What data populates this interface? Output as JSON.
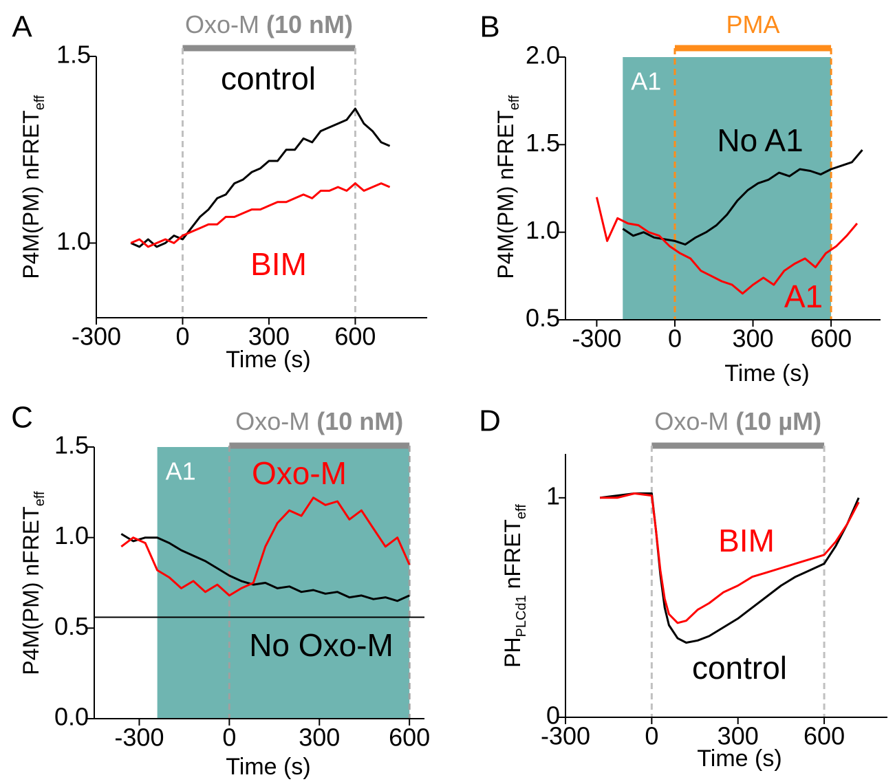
{
  "chart_data": [
    {
      "type": "line",
      "panel": "A",
      "ylabel": [
        {
          "text": "P4M(PM) nFRET"
        },
        {
          "text": "eff",
          "sub": true
        }
      ],
      "xlabel": "Time (s)",
      "xlim": [
        -300,
        850
      ],
      "xticks": [
        -300,
        0,
        300,
        600
      ],
      "ylim": [
        0.8,
        1.5
      ],
      "yticks": [
        {
          "value": 1,
          "label": "1.0"
        },
        1.5
      ],
      "treatment": {
        "label": "Oxo-M",
        "dose": "(10 nM)",
        "from": 0,
        "to": 600,
        "color": "#8c8c8c",
        "line_color": "#c0c0c0"
      },
      "x": [
        -180,
        -150,
        -120,
        -90,
        -60,
        -30,
        0,
        30,
        60,
        90,
        120,
        150,
        180,
        210,
        240,
        270,
        300,
        330,
        360,
        390,
        420,
        450,
        480,
        510,
        540,
        570,
        600,
        630,
        660,
        690,
        720
      ],
      "series": [
        {
          "name": "control",
          "color": "#000000",
          "values": [
            1.0,
            0.99,
            1.01,
            0.99,
            1.0,
            1.02,
            1.01,
            1.04,
            1.07,
            1.09,
            1.12,
            1.13,
            1.16,
            1.17,
            1.19,
            1.2,
            1.22,
            1.22,
            1.25,
            1.25,
            1.28,
            1.27,
            1.3,
            1.31,
            1.32,
            1.33,
            1.36,
            1.32,
            1.3,
            1.27,
            1.26
          ]
        },
        {
          "name": "BIM",
          "color": "#ff0000",
          "values": [
            1.0,
            1.01,
            0.99,
            1.0,
            1.01,
            1.0,
            1.02,
            1.03,
            1.04,
            1.05,
            1.05,
            1.07,
            1.07,
            1.08,
            1.09,
            1.09,
            1.1,
            1.11,
            1.11,
            1.12,
            1.13,
            1.12,
            1.14,
            1.14,
            1.15,
            1.14,
            1.16,
            1.14,
            1.15,
            1.16,
            1.15
          ]
        }
      ]
    },
    {
      "type": "line",
      "panel": "B",
      "ylabel": [
        {
          "text": "P4M(PM) nFRET"
        },
        {
          "text": "eff",
          "sub": true
        }
      ],
      "xlabel": "Time (s)",
      "xlim": [
        -420,
        790
      ],
      "xticks": [
        -300,
        0,
        300,
        600
      ],
      "ylim": [
        0.5,
        2.0
      ],
      "yticks": [
        0.5,
        {
          "value": 1,
          "label": "1.0"
        },
        1.5,
        {
          "value": 2,
          "label": "2.0"
        }
      ],
      "shade": {
        "label": "A1",
        "from": -200,
        "to": 600,
        "color": "#6fb5b1"
      },
      "treatment": {
        "label": "PMA",
        "from": 0,
        "to": 600,
        "color": "#ff8c1a",
        "line_color": "#ff8c1a"
      },
      "series": [
        {
          "name": "No A1",
          "color": "#000000",
          "x": [
            -200,
            -160,
            -120,
            -80,
            -40,
            0,
            40,
            80,
            120,
            160,
            200,
            240,
            280,
            320,
            360,
            400,
            440,
            480,
            520,
            560,
            600,
            640,
            680,
            720
          ],
          "values": [
            1.02,
            0.98,
            1.0,
            0.97,
            0.96,
            0.95,
            0.93,
            0.97,
            1.0,
            1.04,
            1.1,
            1.18,
            1.24,
            1.28,
            1.3,
            1.34,
            1.32,
            1.36,
            1.35,
            1.33,
            1.36,
            1.38,
            1.4,
            1.47
          ]
        },
        {
          "name": "A1",
          "color": "#ff0000",
          "x": [
            -300,
            -260,
            -220,
            -180,
            -140,
            -100,
            -60,
            -20,
            20,
            60,
            100,
            140,
            180,
            220,
            260,
            300,
            340,
            380,
            420,
            460,
            500,
            540,
            580,
            620,
            660,
            700
          ],
          "values": [
            1.2,
            0.95,
            1.08,
            1.05,
            1.04,
            1.0,
            0.98,
            0.92,
            0.88,
            0.85,
            0.78,
            0.75,
            0.72,
            0.7,
            0.65,
            0.7,
            0.74,
            0.7,
            0.78,
            0.82,
            0.85,
            0.8,
            0.88,
            0.92,
            0.98,
            1.05
          ]
        }
      ]
    },
    {
      "type": "line",
      "panel": "C",
      "ylabel": [
        {
          "text": "P4M(PM) nFRET"
        },
        {
          "text": "eff",
          "sub": true
        }
      ],
      "xlabel": "Time (s)",
      "xlim": [
        -450,
        650
      ],
      "xticks": [
        -300,
        0,
        300,
        600
      ],
      "ylim": [
        0,
        1.5
      ],
      "yticks": [
        {
          "value": 0,
          "label": "0.0"
        },
        0.5,
        {
          "value": 1,
          "label": "1.0"
        },
        1.5
      ],
      "hline": 0.56,
      "shade": {
        "label": "A1",
        "from": -240,
        "to": 600,
        "color": "#6fb5b1"
      },
      "treatment": {
        "label": "Oxo-M",
        "dose": "(10 nM)",
        "from": 0,
        "to": 600,
        "color": "#8c8c8c",
        "line_color": "#a0a0a0"
      },
      "x": [
        -360,
        -320,
        -280,
        -240,
        -200,
        -160,
        -120,
        -80,
        -40,
        0,
        40,
        80,
        120,
        160,
        200,
        240,
        280,
        320,
        360,
        400,
        440,
        480,
        520,
        560,
        600
      ],
      "series": [
        {
          "name": "No Oxo-M",
          "color": "#000000",
          "values": [
            1.02,
            0.98,
            1.0,
            1.0,
            0.97,
            0.93,
            0.9,
            0.87,
            0.83,
            0.79,
            0.76,
            0.74,
            0.75,
            0.72,
            0.73,
            0.7,
            0.71,
            0.69,
            0.7,
            0.67,
            0.68,
            0.66,
            0.67,
            0.65,
            0.68
          ]
        },
        {
          "name": "Oxo-M",
          "color": "#ff0000",
          "values": [
            0.95,
            1.0,
            0.97,
            0.82,
            0.78,
            0.72,
            0.76,
            0.7,
            0.74,
            0.68,
            0.72,
            0.75,
            0.95,
            1.08,
            1.15,
            1.12,
            1.22,
            1.18,
            1.2,
            1.1,
            1.15,
            1.05,
            0.95,
            1.0,
            0.85
          ]
        }
      ]
    },
    {
      "type": "line",
      "panel": "D",
      "ylabel": [
        {
          "text": "PH"
        },
        {
          "text": "PLCd1",
          "sub": true
        },
        {
          "text": " nFRET"
        },
        {
          "text": "eff",
          "sub": true
        }
      ],
      "xlabel": "Time (s)",
      "xlim": [
        -300,
        820
      ],
      "xticks": [
        -300,
        0,
        300,
        600
      ],
      "ylim": [
        0,
        1.2
      ],
      "yticks": [
        0,
        1
      ],
      "treatment": {
        "label": "Oxo-M",
        "dose": "(10 µM)",
        "from": 0,
        "to": 600,
        "color": "#8c8c8c",
        "line_color": "#c0c0c0"
      },
      "x": [
        -180,
        -120,
        -60,
        0,
        15,
        30,
        45,
        60,
        90,
        120,
        160,
        200,
        250,
        300,
        350,
        400,
        450,
        500,
        550,
        600,
        640,
        680,
        720
      ],
      "series": [
        {
          "name": "control",
          "color": "#000000",
          "values": [
            1.0,
            1.01,
            1.02,
            1.02,
            0.85,
            0.65,
            0.5,
            0.42,
            0.36,
            0.34,
            0.35,
            0.37,
            0.41,
            0.45,
            0.5,
            0.55,
            0.6,
            0.64,
            0.67,
            0.7,
            0.78,
            0.88,
            1.0
          ]
        },
        {
          "name": "BIM",
          "color": "#ff0000",
          "values": [
            1.0,
            1.0,
            1.02,
            1.01,
            0.85,
            0.67,
            0.54,
            0.47,
            0.43,
            0.44,
            0.49,
            0.52,
            0.57,
            0.6,
            0.64,
            0.66,
            0.68,
            0.7,
            0.72,
            0.74,
            0.8,
            0.88,
            0.98
          ]
        }
      ]
    }
  ]
}
